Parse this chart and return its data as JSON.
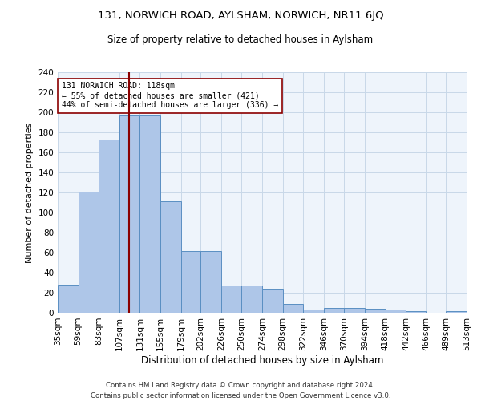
{
  "title": "131, NORWICH ROAD, AYLSHAM, NORWICH, NR11 6JQ",
  "subtitle": "Size of property relative to detached houses in Aylsham",
  "xlabel": "Distribution of detached houses by size in Aylsham",
  "ylabel": "Number of detached properties",
  "bar_color": "#aec6e8",
  "bar_edge_color": "#5a8fc2",
  "grid_color": "#c8d8e8",
  "background_color": "#eef4fb",
  "property_size": 118,
  "vline_color": "#8b0000",
  "annotation_text": "131 NORWICH ROAD: 118sqm\n← 55% of detached houses are smaller (421)\n44% of semi-detached houses are larger (336) →",
  "annotation_box_color": "white",
  "annotation_box_edge": "#8b0000",
  "bin_edges": [
    35,
    59,
    83,
    107,
    131,
    155,
    179,
    202,
    226,
    250,
    274,
    298,
    322,
    346,
    370,
    394,
    418,
    442,
    466,
    489,
    513
  ],
  "bar_heights": [
    28,
    121,
    173,
    197,
    197,
    111,
    62,
    62,
    27,
    27,
    24,
    9,
    3,
    5,
    5,
    4,
    3,
    2,
    0,
    2
  ],
  "tick_labels": [
    "35sqm",
    "59sqm",
    "83sqm",
    "107sqm",
    "131sqm",
    "155sqm",
    "179sqm",
    "202sqm",
    "226sqm",
    "250sqm",
    "274sqm",
    "298sqm",
    "322sqm",
    "346sqm",
    "370sqm",
    "394sqm",
    "418sqm",
    "442sqm",
    "466sqm",
    "489sqm",
    "513sqm"
  ],
  "footnote": "Contains HM Land Registry data © Crown copyright and database right 2024.\nContains public sector information licensed under the Open Government Licence v3.0.",
  "ylim": [
    0,
    240
  ],
  "yticks": [
    0,
    20,
    40,
    60,
    80,
    100,
    120,
    140,
    160,
    180,
    200,
    220,
    240
  ]
}
